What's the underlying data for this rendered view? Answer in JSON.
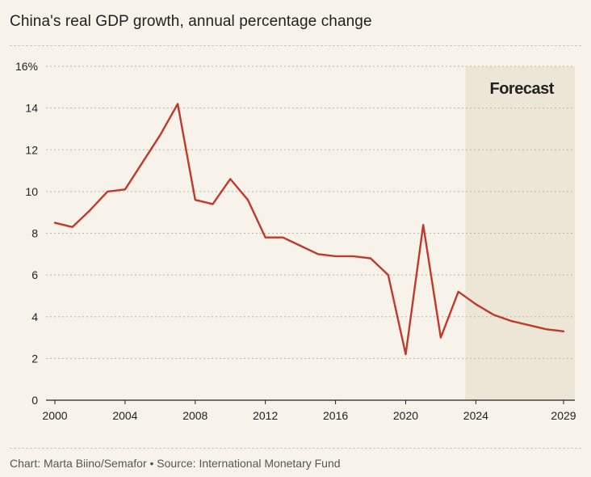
{
  "title": "China's real GDP growth, annual percentage change",
  "footer": "Chart: Marta Biino/Semafor • Source: International Monetary Fund",
  "chart_data": {
    "type": "line",
    "title": "China's real GDP growth, annual percentage change",
    "xlabel": "",
    "ylabel": "",
    "x_ticks": [
      2000,
      2004,
      2008,
      2012,
      2016,
      2020,
      2024,
      2029
    ],
    "y_ticks": [
      0,
      2,
      4,
      6,
      8,
      10,
      12,
      14,
      16
    ],
    "y_tick_labels": [
      "0",
      "2",
      "4",
      "6",
      "8",
      "10",
      "12",
      "14",
      "16%"
    ],
    "xlim": [
      2000,
      2029
    ],
    "ylim": [
      0,
      16
    ],
    "grid": "horizontal dashed",
    "line_color": "#c0392b",
    "forecast_shade_color": "#ebe6d6",
    "forecast_start": 2023.4,
    "forecast_label": "Forecast",
    "series": [
      {
        "x": [
          2000,
          2001,
          2002,
          2003,
          2004,
          2005,
          2006,
          2007,
          2008,
          2009,
          2010,
          2011,
          2012,
          2013,
          2014,
          2015,
          2016,
          2017,
          2018,
          2019,
          2020,
          2021,
          2022,
          2023,
          2024,
          2025,
          2026,
          2027,
          2028,
          2029
        ],
        "values": [
          8.5,
          8.3,
          9.1,
          10.0,
          10.1,
          11.4,
          12.7,
          14.2,
          9.6,
          9.4,
          10.6,
          9.6,
          7.8,
          7.8,
          7.4,
          7.0,
          6.9,
          6.9,
          6.8,
          6.0,
          2.2,
          8.4,
          3.0,
          5.2,
          4.6,
          4.1,
          3.8,
          3.6,
          3.4,
          3.3
        ]
      }
    ]
  }
}
